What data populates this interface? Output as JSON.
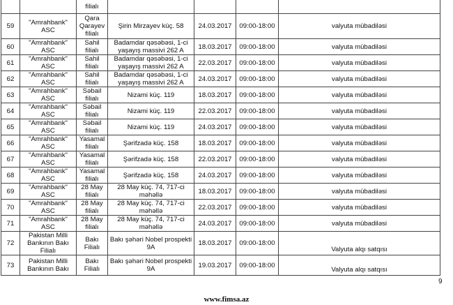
{
  "top_row": {
    "branch": "filialı"
  },
  "rows": [
    {
      "no": "59",
      "bank": "\"Amrahbank\" ASC",
      "branch": "Qara Qarayev filialı",
      "address": "Şirin Mirzayev küç. 58",
      "date": "24.03.2017",
      "hours": "09:00-18:00",
      "service": "valyuta mübadiləsi"
    },
    {
      "no": "60",
      "bank": "\"Amrahbank\" ASC",
      "branch": "Sahil filialı",
      "address": "Badamdar qəsəbəsi, 1-ci yaşayış massivi 262 A",
      "date": "18.03.2017",
      "hours": "09:00-18:00",
      "service": "valyuta mübadiləsi"
    },
    {
      "no": "61",
      "bank": "\"Amrahbank\" ASC",
      "branch": "Sahil filialı",
      "address": "Badamdar qəsəbəsi, 1-ci yaşayış massivi 262 A",
      "date": "22.03.2017",
      "hours": "09:00-18:00",
      "service": "valyuta mübadiləsi"
    },
    {
      "no": "62",
      "bank": "\"Amrahbank\" ASC",
      "branch": "Sahil filialı",
      "address": "Badamdar qəsəbəsi, 1-ci yaşayış massivi 262 A",
      "date": "24.03.2017",
      "hours": "09:00-18:00",
      "service": "valyuta mübadiləsi"
    },
    {
      "no": "63",
      "bank": "\"Amrahbank\" ASC",
      "branch": "Səbail filialı",
      "address": "Nizami küç. 119",
      "date": "18.03.2017",
      "hours": "09:00-18:00",
      "service": "valyuta mübadiləsi"
    },
    {
      "no": "64",
      "bank": "\"Amrahbank\" ASC",
      "branch": "Səbail filialı",
      "address": "Nizami küç. 119",
      "date": "22.03.2017",
      "hours": "09:00-18:00",
      "service": "valyuta mübadiləsi"
    },
    {
      "no": "65",
      "bank": "\"Amrahbank\" ASC",
      "branch": "Səbail filialı",
      "address": "Nizami küç. 119",
      "date": "24.03.2017",
      "hours": "09:00-18:00",
      "service": "valyuta mübadiləsi"
    },
    {
      "no": "66",
      "bank": "\"Amrahbank\" ASC",
      "branch": "Yasamal filialı",
      "address": "Şərifzadə küç. 158",
      "date": "18.03.2017",
      "hours": "09:00-18:00",
      "service": "valyuta mübadiləsi"
    },
    {
      "no": "67",
      "bank": "\"Amrahbank\" ASC",
      "branch": "Yasamal filialı",
      "address": "Şərifzadə küç. 158",
      "date": "22.03.2017",
      "hours": "09:00-18:00",
      "service": "valyuta mübadiləsi"
    },
    {
      "no": "68",
      "bank": "\"Amrahbank\" ASC",
      "branch": "Yasamal filialı",
      "address": "Şərifzadə küç. 158",
      "date": "24.03.2017",
      "hours": "09:00-18:00",
      "service": "valyuta mübadiləsi"
    },
    {
      "no": "69",
      "bank": "\"Amrahbank\" ASC",
      "branch": "28 May filialı",
      "address": "28 May küç. 74, 717-ci məhəllə",
      "date": "18.03.2017",
      "hours": "09:00-18:00",
      "service": "valyuta mübadiləsi"
    },
    {
      "no": "70",
      "bank": "\"Amrahbank\" ASC",
      "branch": "28 May filialı",
      "address": "28 May küç. 74, 717-ci məhəllə",
      "date": "22.03.2017",
      "hours": "09:00-18:00",
      "service": "valyuta mübadiləsi"
    },
    {
      "no": "71",
      "bank": "\"Amrahbank\" ASC",
      "branch": "28 May filialı",
      "address": "28 May küç. 74, 717-ci məhəllə",
      "date": "24.03.2017",
      "hours": "09:00-18:00",
      "service": "valyuta mübadiləsi"
    },
    {
      "no": "72",
      "bank": "Pakistan Milli Bankının Bakı Filialı",
      "branch": "Bakı Filialı",
      "address": "Bakı şəhəri Nobel prospekti 9A",
      "date": "18.03.2017",
      "hours": "09:00-18:00",
      "service": "Valyuta alqı satqısı"
    },
    {
      "no": "73",
      "bank": "Pakistan Milli Bankının Bakı",
      "branch": "Bakı Filialı",
      "address": "Bakı şəhəri Nobel prospekti 9A",
      "date": "19.03.2017",
      "hours": "09:00-18:00",
      "service": "Valyuta alqı satqısı"
    }
  ],
  "page_number": "9",
  "footer": "www.fimsa.az"
}
